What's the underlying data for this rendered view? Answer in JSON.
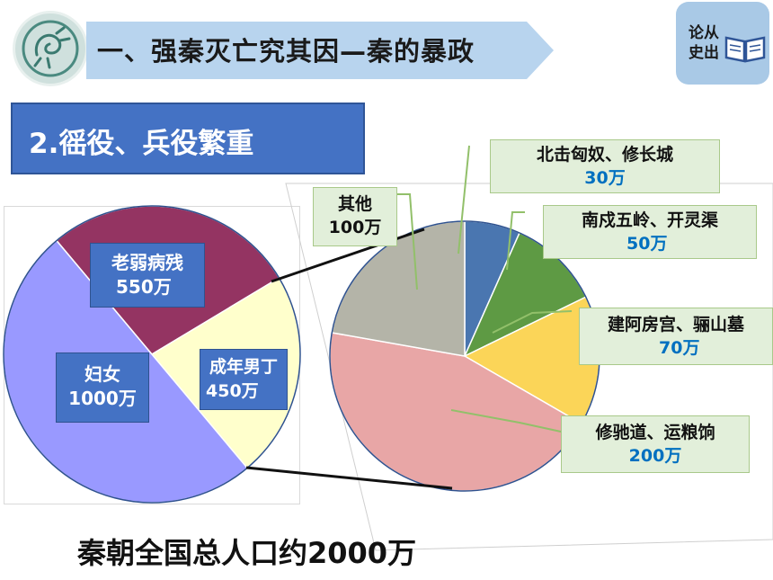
{
  "header": {
    "section_title": "一、强秦灭亡究其因—秦的暴政",
    "badge_text": "论从史出",
    "logo_icon": "dragon-emblem-icon",
    "badge_icon": "open-book-icon"
  },
  "subheading": "2.徭役、兵役繁重",
  "footer_note": "秦朝全国总人口约2000万",
  "colors": {
    "banner": "#b8d4ee",
    "subheading_bg": "#4472c4",
    "label_green_bg": "#e2efda",
    "value_blue": "#0070c0"
  },
  "chart_data": [
    {
      "type": "pie",
      "unit": "万",
      "slices": [
        {
          "name": "老弱病残",
          "value": 550,
          "value_label": "550万",
          "color": "#943462"
        },
        {
          "name": "成年男丁",
          "value": 450,
          "value_label": "450万",
          "color": "#ffffcc"
        },
        {
          "name": "妇女",
          "value": 1000,
          "value_label": "1000万",
          "color": "#9999ff"
        }
      ]
    },
    {
      "type": "pie",
      "unit": "万",
      "slices": [
        {
          "name": "北击匈奴、修长城",
          "value": 30,
          "value_label": "30万",
          "color": "#4a76b0"
        },
        {
          "name": "南戍五岭、开灵渠",
          "value": 50,
          "value_label": "50万",
          "color": "#5e9a44"
        },
        {
          "name": "建阿房宫、骊山墓",
          "value": 70,
          "value_label": "70万",
          "color": "#fbd558"
        },
        {
          "name": "修驰道、运粮饷",
          "value": 200,
          "value_label": "200万",
          "color": "#e8a6a6"
        },
        {
          "name": "其他",
          "value": 100,
          "value_label": "100万",
          "color": "#b4b4a8"
        }
      ]
    }
  ]
}
